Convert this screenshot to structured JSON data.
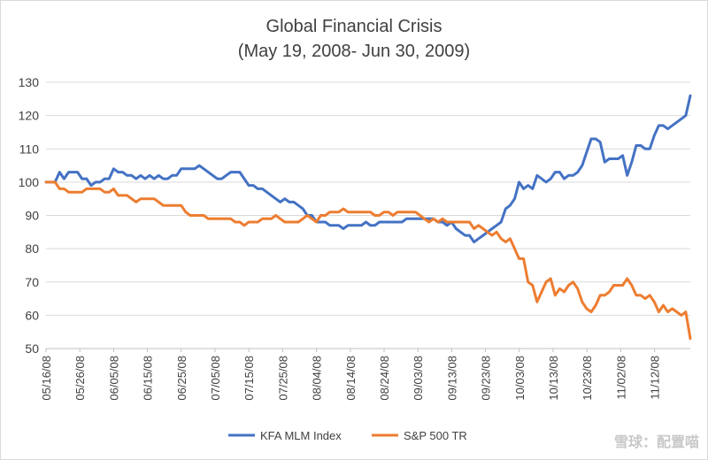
{
  "chart_data": {
    "type": "line",
    "title": "Global Financial Crisis",
    "subtitle": "(May 19, 2008- Jun 30, 2009)",
    "xlabel": "",
    "ylabel": "",
    "ylim": [
      50,
      130
    ],
    "y_ticks": [
      "50",
      "60",
      "70",
      "80",
      "90",
      "100",
      "110",
      "120",
      "130"
    ],
    "x_ticks": [
      "05/16/08",
      "05/26/08",
      "06/05/08",
      "06/15/08",
      "06/25/08",
      "07/05/08",
      "07/15/08",
      "07/25/08",
      "08/04/08",
      "08/14/08",
      "08/24/08",
      "09/03/08",
      "09/13/08",
      "09/23/08",
      "10/03/08",
      "10/13/08",
      "10/23/08",
      "11/02/08",
      "11/12/08"
    ],
    "grid": true,
    "legend_position": "bottom",
    "series": [
      {
        "name": "KFA MLM Index",
        "color": "#4472c4",
        "values": [
          100,
          100,
          100,
          103,
          101,
          103,
          103,
          103,
          101,
          101,
          99,
          100,
          100,
          101,
          101,
          104,
          103,
          103,
          102,
          102,
          101,
          102,
          101,
          102,
          101,
          102,
          101,
          101,
          102,
          102,
          104,
          104,
          104,
          104,
          105,
          104,
          103,
          102,
          101,
          101,
          102,
          103,
          103,
          103,
          101,
          99,
          99,
          98,
          98,
          97,
          96,
          95,
          94,
          95,
          94,
          94,
          93,
          92,
          90,
          90,
          88,
          88,
          88,
          87,
          87,
          87,
          86,
          87,
          87,
          87,
          87,
          88,
          87,
          87,
          88,
          88,
          88,
          88,
          88,
          88,
          89,
          89,
          89,
          89,
          89,
          89,
          89,
          88,
          88,
          87,
          88,
          86,
          85,
          84,
          84,
          82,
          83,
          84,
          85,
          86,
          87,
          88,
          92,
          93,
          95,
          100,
          98,
          99,
          98,
          102,
          101,
          100,
          101,
          103,
          103,
          101,
          102,
          102,
          103,
          105,
          109,
          113,
          113,
          112,
          106,
          107,
          107,
          107,
          108,
          102,
          106,
          111,
          111,
          110,
          110,
          114,
          117,
          117,
          116,
          117,
          118,
          119,
          120,
          126
        ]
      },
      {
        "name": "S&P 500 TR",
        "color": "#ed7d31",
        "values": [
          100,
          100,
          100,
          98,
          98,
          97,
          97,
          97,
          97,
          98,
          98,
          98,
          98,
          97,
          97,
          98,
          96,
          96,
          96,
          95,
          94,
          95,
          95,
          95,
          95,
          94,
          93,
          93,
          93,
          93,
          93,
          91,
          90,
          90,
          90,
          90,
          89,
          89,
          89,
          89,
          89,
          89,
          88,
          88,
          87,
          88,
          88,
          88,
          89,
          89,
          89,
          90,
          89,
          88,
          88,
          88,
          88,
          89,
          90,
          89,
          88,
          90,
          90,
          91,
          91,
          91,
          92,
          91,
          91,
          91,
          91,
          91,
          91,
          90,
          90,
          91,
          91,
          90,
          91,
          91,
          91,
          91,
          91,
          90,
          89,
          88,
          89,
          88,
          89,
          88,
          88,
          88,
          88,
          88,
          88,
          86,
          87,
          86,
          85,
          84,
          85,
          83,
          82,
          83,
          80,
          77,
          77,
          70,
          69,
          64,
          67,
          70,
          71,
          66,
          68,
          67,
          69,
          70,
          68,
          64,
          62,
          61,
          63,
          66,
          66,
          67,
          69,
          69,
          69,
          71,
          69,
          66,
          66,
          65,
          66,
          64,
          61,
          63,
          61,
          62,
          61,
          60,
          61,
          53
        ]
      }
    ]
  },
  "watermark": "雪球：配置喵"
}
